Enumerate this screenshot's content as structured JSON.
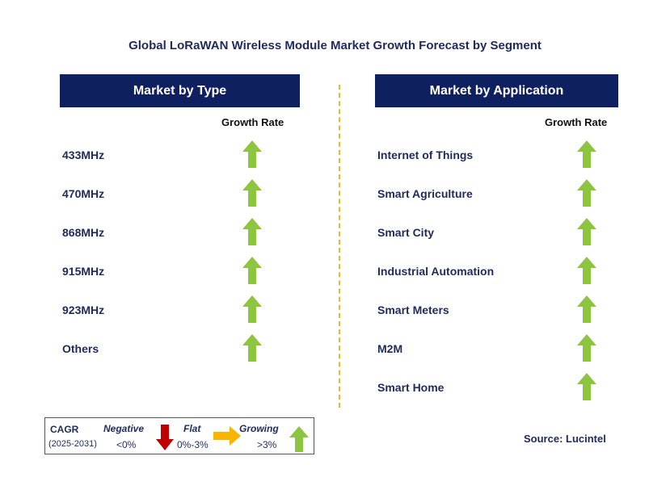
{
  "title": "Global LoRaWAN Wireless Module Market Growth Forecast by Segment",
  "left_panel": {
    "header": "Market by Type",
    "growth_label": "Growth Rate",
    "items": [
      {
        "label": "433MHz",
        "trend": "growing"
      },
      {
        "label": "470MHz",
        "trend": "growing"
      },
      {
        "label": "868MHz",
        "trend": "growing"
      },
      {
        "label": "915MHz",
        "trend": "growing"
      },
      {
        "label": "923MHz",
        "trend": "growing"
      },
      {
        "label": "Others",
        "trend": "growing"
      }
    ]
  },
  "right_panel": {
    "header": "Market by Application",
    "growth_label": "Growth Rate",
    "items": [
      {
        "label": "Internet of Things",
        "trend": "growing"
      },
      {
        "label": "Smart Agriculture",
        "trend": "growing"
      },
      {
        "label": "Smart City",
        "trend": "growing"
      },
      {
        "label": "Industrial Automation",
        "trend": "growing"
      },
      {
        "label": "Smart Meters",
        "trend": "growing"
      },
      {
        "label": "M2M",
        "trend": "growing"
      },
      {
        "label": "Smart Home",
        "trend": "growing"
      }
    ]
  },
  "legend": {
    "cagr": "CAGR",
    "period": "(2025-2031)",
    "negative": "Negative",
    "negative_range": "<0%",
    "flat": "Flat",
    "flat_range": "0%-3%",
    "growing": "Growing",
    "growing_range": ">3%"
  },
  "source": "Source: Lucintel",
  "colors": {
    "header_bg": "#0f2060",
    "text": "#1f2a5c",
    "growing": "#8cc63f",
    "flat": "#f7b500",
    "negative": "#c00000",
    "divider": "#f2b81c"
  }
}
